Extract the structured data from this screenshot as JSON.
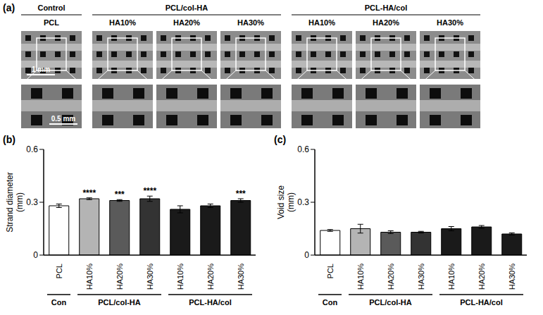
{
  "figure_a": {
    "title": "(a)",
    "groups": [
      {
        "label": "Control",
        "items": [
          "PCL"
        ]
      },
      {
        "label": "PCL/col-HA",
        "items": [
          "HA10%",
          "HA20%",
          "HA30%"
        ]
      },
      {
        "label": "PCL-HA/col",
        "items": [
          "HA10%",
          "HA20%",
          "HA30%"
        ]
      }
    ],
    "scale_bars": [
      "1 mm",
      "0.5 mm"
    ]
  },
  "chart_data": [
    {
      "type": "bar",
      "title": "(b)",
      "y_label": "Strand diameter (mm)",
      "categories": [
        "PCL",
        "HA10%",
        "HA20%",
        "HA30%",
        "HA10%",
        "HA20%",
        "HA30%"
      ],
      "values": [
        0.28,
        0.32,
        0.31,
        0.32,
        0.26,
        0.28,
        0.31
      ],
      "errors": [
        0.01,
        0.005,
        0.005,
        0.015,
        0.02,
        0.01,
        0.01
      ],
      "annotations": [
        null,
        "****",
        "***",
        "****",
        null,
        null,
        "***"
      ],
      "colors": [
        "#ffffff",
        "#b4b4b4",
        "#5a5a5a",
        "#333333",
        "#1a1a1a",
        "#1a1a1a",
        "#1a1a1a"
      ],
      "groups": [
        {
          "label": "Con",
          "count": 1
        },
        {
          "label": "PCL/col-HA",
          "count": 3
        },
        {
          "label": "PCL-HA/col",
          "count": 3
        }
      ],
      "ylim": [
        0,
        0.6
      ],
      "yticks": [
        0,
        0.3,
        0.6
      ]
    },
    {
      "type": "bar",
      "title": "(c)",
      "y_label": "Void size (mm)",
      "categories": [
        "PCL",
        "HA10%",
        "HA20%",
        "HA30%",
        "HA10%",
        "HA20%",
        "HA30%"
      ],
      "values": [
        0.14,
        0.15,
        0.13,
        0.13,
        0.15,
        0.16,
        0.12
      ],
      "errors": [
        0.005,
        0.025,
        0.008,
        0.005,
        0.012,
        0.008,
        0.006
      ],
      "annotations": [
        null,
        null,
        null,
        null,
        null,
        null,
        null
      ],
      "colors": [
        "#ffffff",
        "#b4b4b4",
        "#5a5a5a",
        "#333333",
        "#1a1a1a",
        "#1a1a1a",
        "#1a1a1a"
      ],
      "groups": [
        {
          "label": "Con",
          "count": 1
        },
        {
          "label": "PCL/col-HA",
          "count": 3
        },
        {
          "label": "PCL-HA/col",
          "count": 3
        }
      ],
      "ylim": [
        0,
        0.6
      ],
      "yticks": [
        0,
        0.3,
        0.6
      ]
    }
  ]
}
